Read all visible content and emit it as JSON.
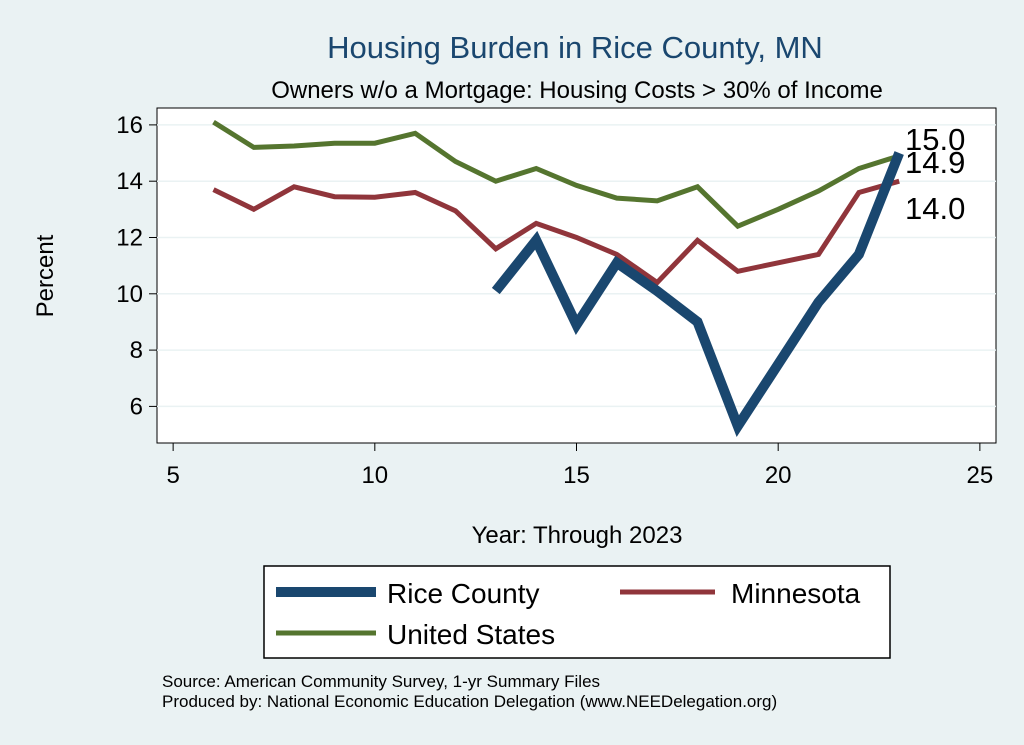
{
  "chart_data": {
    "type": "line",
    "title": "Housing Burden in Rice County, MN",
    "subtitle": "Owners w/o a Mortgage: Housing Costs > 30% of Income",
    "xlabel": "Year: Through 2023",
    "ylabel": "Percent",
    "xlim": [
      4.6,
      25.4
    ],
    "ylim": [
      4.7,
      16.6
    ],
    "xticks": [
      5,
      10,
      15,
      20,
      25
    ],
    "yticks": [
      6,
      8,
      10,
      12,
      14,
      16
    ],
    "grid": true,
    "legend_position": "bottom",
    "series": [
      {
        "name": "Rice County",
        "color": "#1a476f",
        "x": [
          13,
          14,
          15,
          16,
          17,
          18,
          19,
          20,
          21,
          22,
          23
        ],
        "y": [
          10.1,
          11.9,
          8.9,
          11.1,
          10.1,
          9.0,
          5.3,
          7.5,
          9.7,
          11.4,
          15.0
        ],
        "end_label": "15.0"
      },
      {
        "name": "Minnesota",
        "color": "#90353b",
        "x": [
          6,
          7,
          8,
          9,
          10,
          11,
          12,
          13,
          14,
          15,
          16,
          17,
          18,
          19,
          20,
          21,
          22,
          23
        ],
        "y": [
          13.7,
          13.0,
          13.8,
          13.45,
          13.43,
          13.6,
          12.95,
          11.6,
          12.5,
          12.0,
          11.4,
          10.4,
          11.9,
          10.8,
          11.1,
          11.4,
          13.6,
          14.0
        ],
        "end_label": "14.0"
      },
      {
        "name": "United States",
        "color": "#55752f",
        "x": [
          6,
          7,
          8,
          9,
          10,
          11,
          12,
          13,
          14,
          15,
          16,
          17,
          18,
          19,
          20,
          21,
          22,
          23
        ],
        "y": [
          16.1,
          15.2,
          15.25,
          15.35,
          15.35,
          15.7,
          14.7,
          14.0,
          14.45,
          13.85,
          13.4,
          13.3,
          13.8,
          12.4,
          13.0,
          13.65,
          14.45,
          14.9
        ],
        "end_label": "14.9"
      }
    ],
    "notes": [
      "Source: American Community Survey, 1-yr Summary Files",
      "Produced by: National Economic Education Delegation (www.NEEDelegation.org)"
    ]
  }
}
